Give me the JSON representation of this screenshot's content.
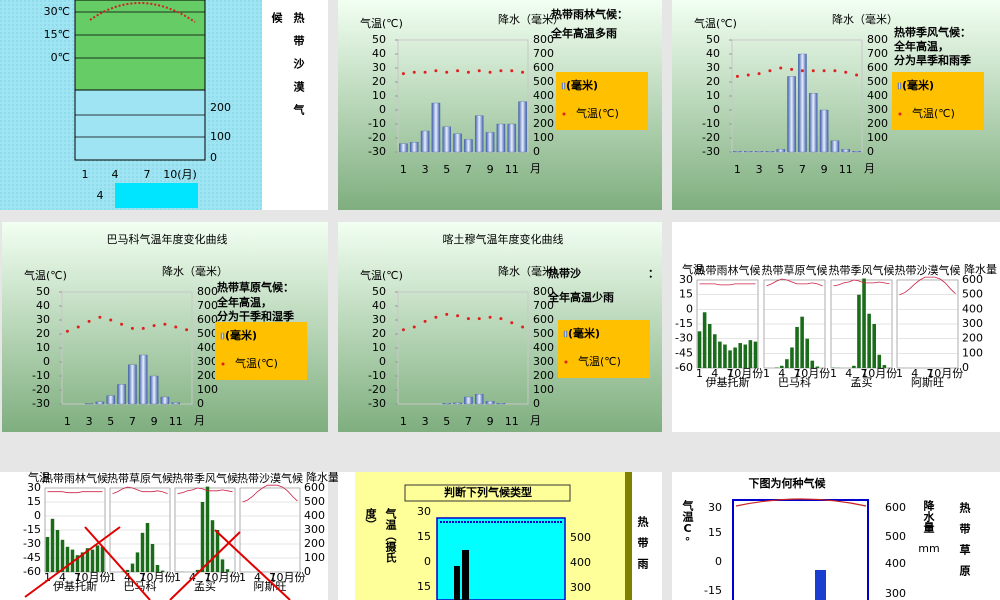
{
  "slides": [
    {
      "side_text": [
        "候",
        "热带沙漠气"
      ],
      "temp_ticks": [
        "30℃",
        "15℃",
        "0℃"
      ],
      "precip_ticks": [
        "200",
        "100",
        "0"
      ],
      "months": [
        "1",
        "4",
        "7",
        "10(月)"
      ],
      "footer_number": "4"
    },
    {
      "title": [
        "热带雨林气候：",
        "全年高温多雨"
      ],
      "temp_label": "气温(℃)",
      "precip_label": "降水（毫米）",
      "month_unit": "月",
      "legend": [
        "(毫米)",
        "气温(℃)"
      ],
      "chart": {
        "xticks": [
          1,
          3,
          5,
          7,
          9,
          11
        ],
        "ylim": [
          -30,
          50
        ],
        "yticks": [
          50,
          40,
          30,
          20,
          10,
          0,
          -10,
          -20,
          -30
        ],
        "y2lim": [
          0,
          800
        ],
        "y2ticks": [
          800,
          700,
          600,
          500,
          400,
          300,
          200,
          100,
          0
        ],
        "temp": [
          26,
          27,
          27,
          28,
          27,
          28,
          27,
          28,
          27,
          28,
          28,
          27
        ],
        "precip": [
          60,
          70,
          150,
          350,
          180,
          130,
          90,
          260,
          140,
          200,
          200,
          360
        ]
      }
    },
    {
      "title": [
        "热带季风气候：",
        "全年高温，",
        "分为旱季和雨季"
      ],
      "temp_label": "气温(℃)",
      "precip_label": "降水（毫米）",
      "month_unit": "月",
      "legend": [
        "(毫米)",
        "气温(℃)"
      ],
      "chart": {
        "xticks": [
          1,
          3,
          5,
          7,
          9,
          11
        ],
        "ylim": [
          -30,
          50
        ],
        "yticks": [
          50,
          40,
          30,
          20,
          10,
          0,
          -10,
          -20,
          -30
        ],
        "y2lim": [
          0,
          800
        ],
        "y2ticks": [
          800,
          700,
          600,
          500,
          400,
          300,
          200,
          100,
          0
        ],
        "temp": [
          24,
          25,
          26,
          28,
          30,
          29,
          28,
          28,
          28,
          28,
          27,
          25
        ],
        "precip": [
          5,
          5,
          5,
          5,
          20,
          540,
          700,
          420,
          300,
          80,
          20,
          5
        ]
      }
    },
    {
      "heading": "巴马科气温年度变化曲线",
      "title": [
        "热带草原气候：",
        "全年高温，",
        "分为干季和湿季"
      ],
      "temp_label": "气温(℃)",
      "precip_label": "降水（毫米）",
      "month_unit": "月",
      "legend": [
        "(毫米)",
        "气温(℃)"
      ],
      "chart": {
        "xticks": [
          1,
          3,
          5,
          7,
          9,
          11
        ],
        "ylim": [
          -30,
          50
        ],
        "yticks": [
          50,
          40,
          30,
          20,
          10,
          0,
          -10,
          -20,
          -30
        ],
        "y2lim": [
          0,
          800
        ],
        "y2ticks": [
          800,
          700,
          600,
          500,
          400,
          300,
          200,
          100,
          0
        ],
        "temp": [
          22,
          25,
          29,
          32,
          30,
          27,
          24,
          24,
          26,
          27,
          25,
          23
        ],
        "precip": [
          0,
          0,
          3,
          15,
          60,
          140,
          280,
          350,
          200,
          50,
          10,
          0
        ]
      }
    },
    {
      "heading": "喀土穆气温年度变化曲线",
      "title": [
        "热带沙",
        "：",
        "全年高温少雨"
      ],
      "temp_label": "气温(℃)",
      "precip_label": "降水（毫米）",
      "month_unit": "月",
      "legend": [
        "(毫米)",
        "气温(℃)"
      ],
      "chart": {
        "xticks": [
          1,
          3,
          5,
          7,
          9,
          11
        ],
        "ylim": [
          -30,
          50
        ],
        "yticks": [
          50,
          40,
          30,
          20,
          10,
          0,
          -10,
          -20,
          -30
        ],
        "y2lim": [
          0,
          800
        ],
        "y2ticks": [
          800,
          700,
          600,
          500,
          400,
          300,
          200,
          100,
          0
        ],
        "temp": [
          23,
          25,
          29,
          32,
          34,
          33,
          31,
          31,
          32,
          31,
          28,
          25
        ],
        "precip": [
          0,
          0,
          0,
          0,
          5,
          8,
          50,
          70,
          20,
          5,
          0,
          0
        ]
      }
    },
    {
      "left_label": "气温",
      "right_label": "降水量",
      "xticks": [
        "1",
        "4",
        "7",
        "10月份"
      ],
      "ylim": [
        -60,
        30
      ],
      "yticks": [
        30,
        15,
        0,
        -15,
        -30,
        -45,
        -60
      ],
      "y2lim": [
        0,
        600
      ],
      "y2ticks": [
        600,
        500,
        400,
        300,
        200,
        100,
        0
      ],
      "charts": [
        {
          "name": "热带雨林气候",
          "city": "伊基托斯",
          "temp": [
            26,
            26,
            26,
            26,
            25,
            25,
            25,
            26,
            26,
            26,
            26,
            26
          ],
          "precip": [
            250,
            380,
            300,
            230,
            180,
            160,
            120,
            140,
            170,
            160,
            190,
            180
          ]
        },
        {
          "name": "热带草原气候",
          "city": "巴马科",
          "temp": [
            24,
            26,
            29,
            31,
            30,
            28,
            26,
            26,
            26,
            27,
            26,
            24
          ],
          "precip": [
            0,
            0,
            3,
            15,
            60,
            140,
            280,
            350,
            200,
            50,
            10,
            0
          ]
        },
        {
          "name": "热带季风气候",
          "city": "孟买",
          "temp": [
            24,
            25,
            27,
            28,
            30,
            29,
            27,
            27,
            27,
            28,
            27,
            26
          ],
          "precip": [
            2,
            1,
            0,
            0,
            15,
            500,
            610,
            370,
            300,
            90,
            20,
            1
          ]
        },
        {
          "name": "热带沙漠气候",
          "city": "阿斯旺",
          "temp": [
            15,
            17,
            21,
            26,
            30,
            33,
            33,
            33,
            31,
            27,
            21,
            16
          ],
          "precip": [
            0,
            0,
            0,
            0,
            0,
            0,
            0,
            0,
            0,
            0,
            0,
            0
          ]
        }
      ]
    },
    {
      "left_label": "气温",
      "right_label": "降水量",
      "xticks": [
        "1",
        "4",
        "7",
        "10月份"
      ],
      "ylim": [
        -60,
        30
      ],
      "yticks": [
        30,
        15,
        0,
        -15,
        -30,
        -45,
        -60
      ],
      "y2lim": [
        0,
        600
      ],
      "y2ticks": [
        600,
        500,
        400,
        300,
        200,
        100,
        0
      ],
      "charts": [
        {
          "name": "热带雨林气候",
          "city": "伊基托斯",
          "temp": [
            26,
            26,
            26,
            26,
            25,
            25,
            25,
            26,
            26,
            26,
            26,
            26
          ],
          "precip": [
            250,
            380,
            300,
            230,
            180,
            160,
            120,
            140,
            170,
            160,
            190,
            180
          ]
        },
        {
          "name": "热带草原气候",
          "city": "巴马科",
          "temp": [
            24,
            26,
            29,
            31,
            30,
            28,
            26,
            26,
            26,
            27,
            26,
            24
          ],
          "precip": [
            0,
            0,
            3,
            15,
            60,
            140,
            280,
            350,
            200,
            50,
            10,
            0
          ]
        },
        {
          "name": "热带季风气候",
          "city": "孟买",
          "temp": [
            24,
            25,
            27,
            28,
            30,
            29,
            27,
            27,
            27,
            28,
            27,
            26
          ],
          "precip": [
            2,
            1,
            0,
            0,
            15,
            500,
            610,
            370,
            300,
            90,
            20,
            1
          ]
        },
        {
          "name": "热带沙漠气候",
          "city": "阿斯旺",
          "temp": [
            15,
            17,
            21,
            26,
            30,
            33,
            33,
            33,
            31,
            27,
            21,
            16
          ],
          "precip": [
            0,
            0,
            0,
            0,
            0,
            0,
            0,
            0,
            0,
            0,
            0,
            0
          ]
        }
      ]
    },
    {
      "title": "判断下列气候类型",
      "side_label": [
        "度）",
        "气温（摄氏"
      ],
      "temp_ticks": [
        "30",
        "15",
        "0",
        "15"
      ],
      "precip_ticks": [
        "500",
        "400",
        "300"
      ],
      "side_text": "热带雨"
    },
    {
      "title": "下图为何种气候",
      "temp_label": "气温C°",
      "temp_ticks": [
        "30",
        "15",
        "0",
        "-15"
      ],
      "precip_ticks": [
        "600",
        "500",
        "400",
        "300"
      ],
      "precip_label": "降水量",
      "precip_unit": "mm",
      "side_text": "热带草原"
    }
  ]
}
